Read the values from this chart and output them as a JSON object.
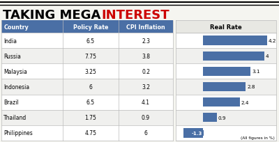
{
  "title_black": "TAKING MEGA ",
  "title_red": "INTEREST",
  "headers": [
    "Country",
    "Policy Rate",
    "CPI Inflation"
  ],
  "countries": [
    "India",
    "Russia",
    "Malaysia",
    "Indonesia",
    "Brazil",
    "Thailand",
    "Philippines"
  ],
  "policy_rates": [
    "6.5",
    "7.75",
    "3.25",
    "6",
    "6.5",
    "1.75",
    "4.75"
  ],
  "cpi_inflation": [
    "2.3",
    "3.8",
    "0.2",
    "3.2",
    "4.1",
    "0.9",
    "6"
  ],
  "real_rates": [
    4.2,
    4.0,
    3.1,
    2.8,
    2.4,
    0.9,
    -1.3
  ],
  "real_rate_labels": [
    "4.2",
    "4",
    "3.1",
    "2.8",
    "2.4",
    "0.9",
    "-1.3"
  ],
  "bar_color": "#4a6fa5",
  "header_bg": "#4a6fa5",
  "header_text_color": "#ffffff",
  "grid_line_color": "#bbbbbb",
  "title_font_size": 13,
  "note": "(All figures in %)",
  "real_rate_header": "Real Rate",
  "background_color": "#f5f5f0",
  "table_bg": "#f5f5f0"
}
